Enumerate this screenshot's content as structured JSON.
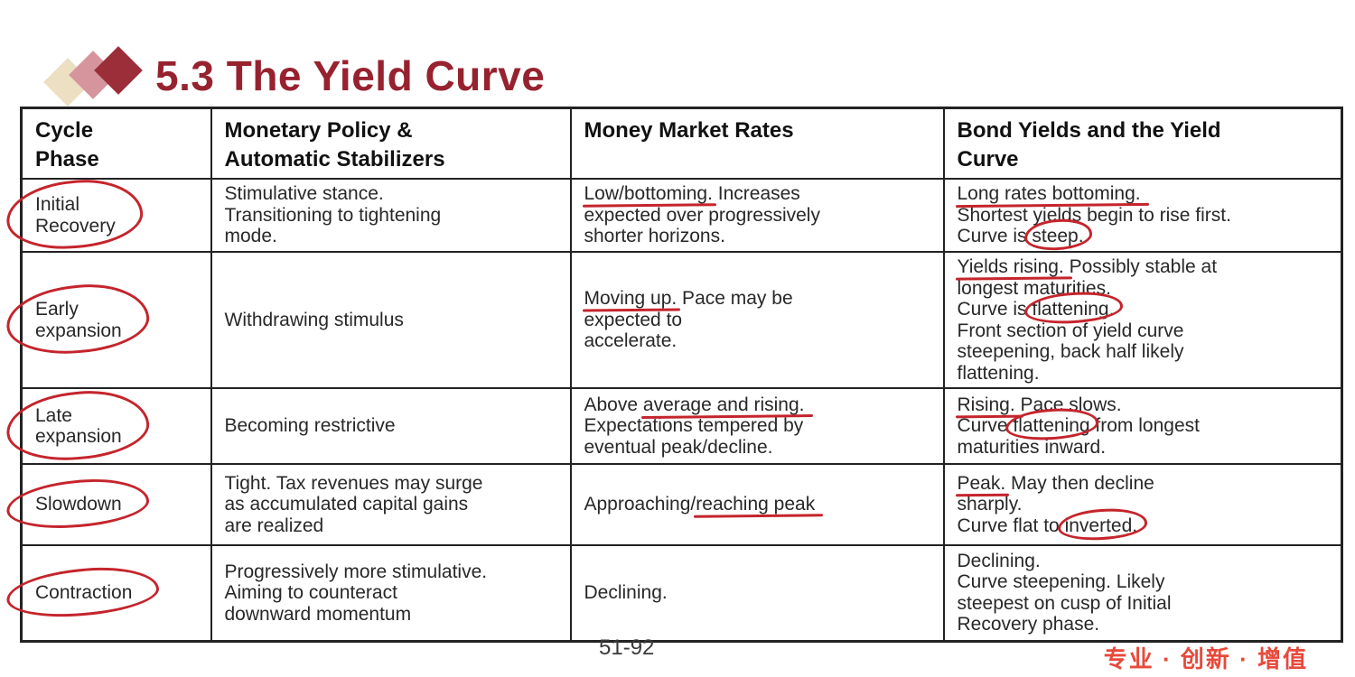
{
  "slide": {
    "title": "5.3 The Yield Curve",
    "page_number": "51-92",
    "watermark": "专业 · 创新 · 增值",
    "colors": {
      "title_red": "#97222f",
      "annotation_red": "#c5242c",
      "watermark_red": "#e8493b",
      "logo_cream": "#ecdfc2",
      "logo_pink": "#d6959c",
      "logo_dark_red": "#9c2e3a",
      "table_border": "#222222",
      "body_text": "#282828"
    }
  },
  "table": {
    "headers": [
      [
        {
          "t": "Cycle"
        },
        {
          "br": true
        },
        {
          "t": "Phase"
        }
      ],
      [
        {
          "t": "Monetary Policy &"
        },
        {
          "br": true
        },
        {
          "t": "Automatic Stabilizers"
        }
      ],
      [
        {
          "t": "Money Market Rates"
        }
      ],
      [
        {
          "t": "Bond Yields and the Yield"
        },
        {
          "br": true
        },
        {
          "t": "Curve"
        }
      ]
    ],
    "rows": [
      {
        "phase": {
          "circled": true,
          "segments": [
            {
              "t": "Initial"
            },
            {
              "br": true
            },
            {
              "t": "Recovery"
            }
          ]
        },
        "cells": [
          [
            {
              "t": "Stimulative stance."
            },
            {
              "br": true
            },
            {
              "t": "Transitioning to tightening"
            },
            {
              "br": true
            },
            {
              "t": "mode."
            }
          ],
          [
            {
              "t": "Low/bottoming",
              "m": "u"
            },
            {
              "t": ". Increases"
            },
            {
              "br": true
            },
            {
              "t": "expected over progressively"
            },
            {
              "br": true
            },
            {
              "t": "shorter horizons."
            }
          ],
          [
            {
              "t": "Long rates bottoming.",
              "m": "u"
            },
            {
              "br": true
            },
            {
              "t": "Shortest yields begin to rise first."
            },
            {
              "br": true
            },
            {
              "t": "Curve is "
            },
            {
              "t": "steep.",
              "m": "c"
            }
          ]
        ]
      },
      {
        "phase": {
          "circled": true,
          "segments": [
            {
              "t": "Early"
            },
            {
              "br": true
            },
            {
              "t": "expansion"
            }
          ]
        },
        "cells": [
          [
            {
              "t": "Withdrawing stimulus"
            }
          ],
          [
            {
              "t": "Moving up",
              "m": "u"
            },
            {
              "t": ". Pace may be"
            },
            {
              "br": true
            },
            {
              "t": "expected to"
            },
            {
              "br": true
            },
            {
              "t": "accelerate."
            }
          ],
          [
            {
              "t": "Yields rising.",
              "m": "u"
            },
            {
              "t": " Possibly stable at"
            },
            {
              "br": true
            },
            {
              "t": "longest maturities."
            },
            {
              "br": true
            },
            {
              "t": "Curve is "
            },
            {
              "t": "flattening.",
              "m": "c"
            },
            {
              "br": true
            },
            {
              "t": "Front section of yield curve"
            },
            {
              "br": true
            },
            {
              "t": "steepening, back half likely"
            },
            {
              "br": true
            },
            {
              "t": "flattening."
            }
          ]
        ]
      },
      {
        "phase": {
          "circled": true,
          "segments": [
            {
              "t": "Late"
            },
            {
              "br": true
            },
            {
              "t": "expansion"
            }
          ]
        },
        "cells": [
          [
            {
              "t": "Becoming restrictive"
            }
          ],
          [
            {
              "t": "Above "
            },
            {
              "t": "average and rising.",
              "m": "u"
            },
            {
              "br": true
            },
            {
              "t": "Expectations tempered by"
            },
            {
              "br": true
            },
            {
              "t": "eventual peak/decline."
            }
          ],
          [
            {
              "t": "Rising.",
              "m": "u"
            },
            {
              "t": " Pace slows."
            },
            {
              "br": true
            },
            {
              "t": "Curve "
            },
            {
              "t": "flattening",
              "m": "c"
            },
            {
              "t": " from longest"
            },
            {
              "br": true
            },
            {
              "t": "maturities inward."
            }
          ]
        ]
      },
      {
        "phase": {
          "circled": true,
          "segments": [
            {
              "t": "Slowdown"
            }
          ]
        },
        "cells": [
          [
            {
              "t": "Tight. Tax revenues may surge"
            },
            {
              "br": true
            },
            {
              "t": "as accumulated capital gains"
            },
            {
              "br": true
            },
            {
              "t": "are realized"
            }
          ],
          [
            {
              "t": "Approaching/"
            },
            {
              "t": "reaching peak",
              "m": "u"
            }
          ],
          [
            {
              "t": "Peak",
              "m": "u"
            },
            {
              "t": ". May then decline"
            },
            {
              "br": true
            },
            {
              "t": "sharply."
            },
            {
              "br": true
            },
            {
              "t": "Curve flat to "
            },
            {
              "t": "inverted.",
              "m": "c"
            }
          ]
        ]
      },
      {
        "phase": {
          "circled": true,
          "segments": [
            {
              "t": "Contraction"
            }
          ]
        },
        "cells": [
          [
            {
              "t": "Progressively more stimulative."
            },
            {
              "br": true
            },
            {
              "t": "Aiming to counteract"
            },
            {
              "br": true
            },
            {
              "t": "downward momentum"
            }
          ],
          [
            {
              "t": "Declining."
            }
          ],
          [
            {
              "t": "Declining."
            },
            {
              "br": true
            },
            {
              "t": "Curve steepening. Likely"
            },
            {
              "br": true
            },
            {
              "t": "steepest on cusp of Initial"
            },
            {
              "br": true
            },
            {
              "t": "Recovery phase."
            }
          ]
        ]
      }
    ]
  }
}
